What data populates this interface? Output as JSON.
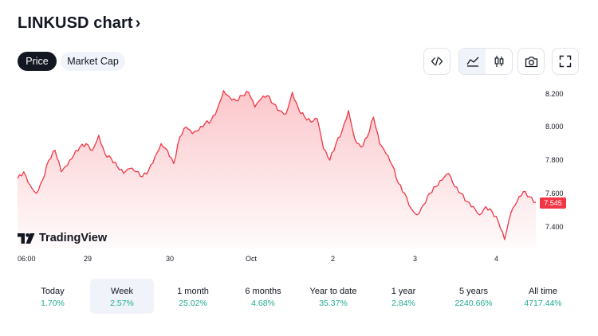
{
  "header": {
    "title": "LINKUSD chart",
    "title_chevron": "›"
  },
  "tabs": [
    {
      "label": "Price",
      "active": true
    },
    {
      "label": "Market Cap",
      "active": false
    }
  ],
  "toolbar": {
    "icons": [
      "embed-code-icon",
      "area-chart-icon",
      "candlestick-icon",
      "camera-icon",
      "fullscreen-icon"
    ]
  },
  "chart_data": {
    "type": "area",
    "series": [
      {
        "values": [
          7.69,
          7.73,
          7.65,
          7.6,
          7.68,
          7.8,
          7.86,
          7.73,
          7.77,
          7.83,
          7.88,
          7.9,
          7.86,
          7.95,
          7.84,
          7.81,
          7.76,
          7.72,
          7.75,
          7.73,
          7.7,
          7.74,
          7.82,
          7.9,
          7.86,
          7.78,
          7.94,
          8.0,
          7.96,
          7.98,
          8.02,
          8.04,
          8.11,
          8.22,
          8.18,
          8.16,
          8.19,
          8.21,
          8.12,
          8.17,
          8.19,
          8.14,
          8.1,
          8.08,
          8.21,
          8.11,
          8.06,
          8.03,
          8.05,
          7.87,
          7.8,
          7.9,
          7.98,
          8.1,
          7.93,
          7.88,
          7.94,
          8.06,
          7.9,
          7.84,
          7.77,
          7.66,
          7.6,
          7.51,
          7.47,
          7.53,
          7.6,
          7.64,
          7.68,
          7.72,
          7.64,
          7.6,
          7.55,
          7.52,
          7.47,
          7.52,
          7.49,
          7.43,
          7.32,
          7.48,
          7.55,
          7.61,
          7.58,
          7.545
        ],
        "color": "#f23645"
      }
    ],
    "ylim": [
      7.28,
      8.25
    ],
    "y_ticks": [
      "8.200",
      "8.000",
      "7.800",
      "7.600",
      "7.400"
    ],
    "x_ticks": [
      "06:00",
      "29",
      "30",
      "Oct",
      "2",
      "3",
      "4"
    ],
    "last_value": "7.545",
    "watermark": "TradingView"
  },
  "periods": [
    {
      "label": "Today",
      "value": "1.70%",
      "selected": false
    },
    {
      "label": "Week",
      "value": "2.57%",
      "selected": true
    },
    {
      "label": "1 month",
      "value": "25.02%",
      "selected": false
    },
    {
      "label": "6 months",
      "value": "4.68%",
      "selected": false
    },
    {
      "label": "Year to date",
      "value": "35.37%",
      "selected": false
    },
    {
      "label": "1 year",
      "value": "2.84%",
      "selected": false
    },
    {
      "label": "5 years",
      "value": "2240.66%",
      "selected": false
    },
    {
      "label": "All time",
      "value": "4717.44%",
      "selected": false
    }
  ]
}
